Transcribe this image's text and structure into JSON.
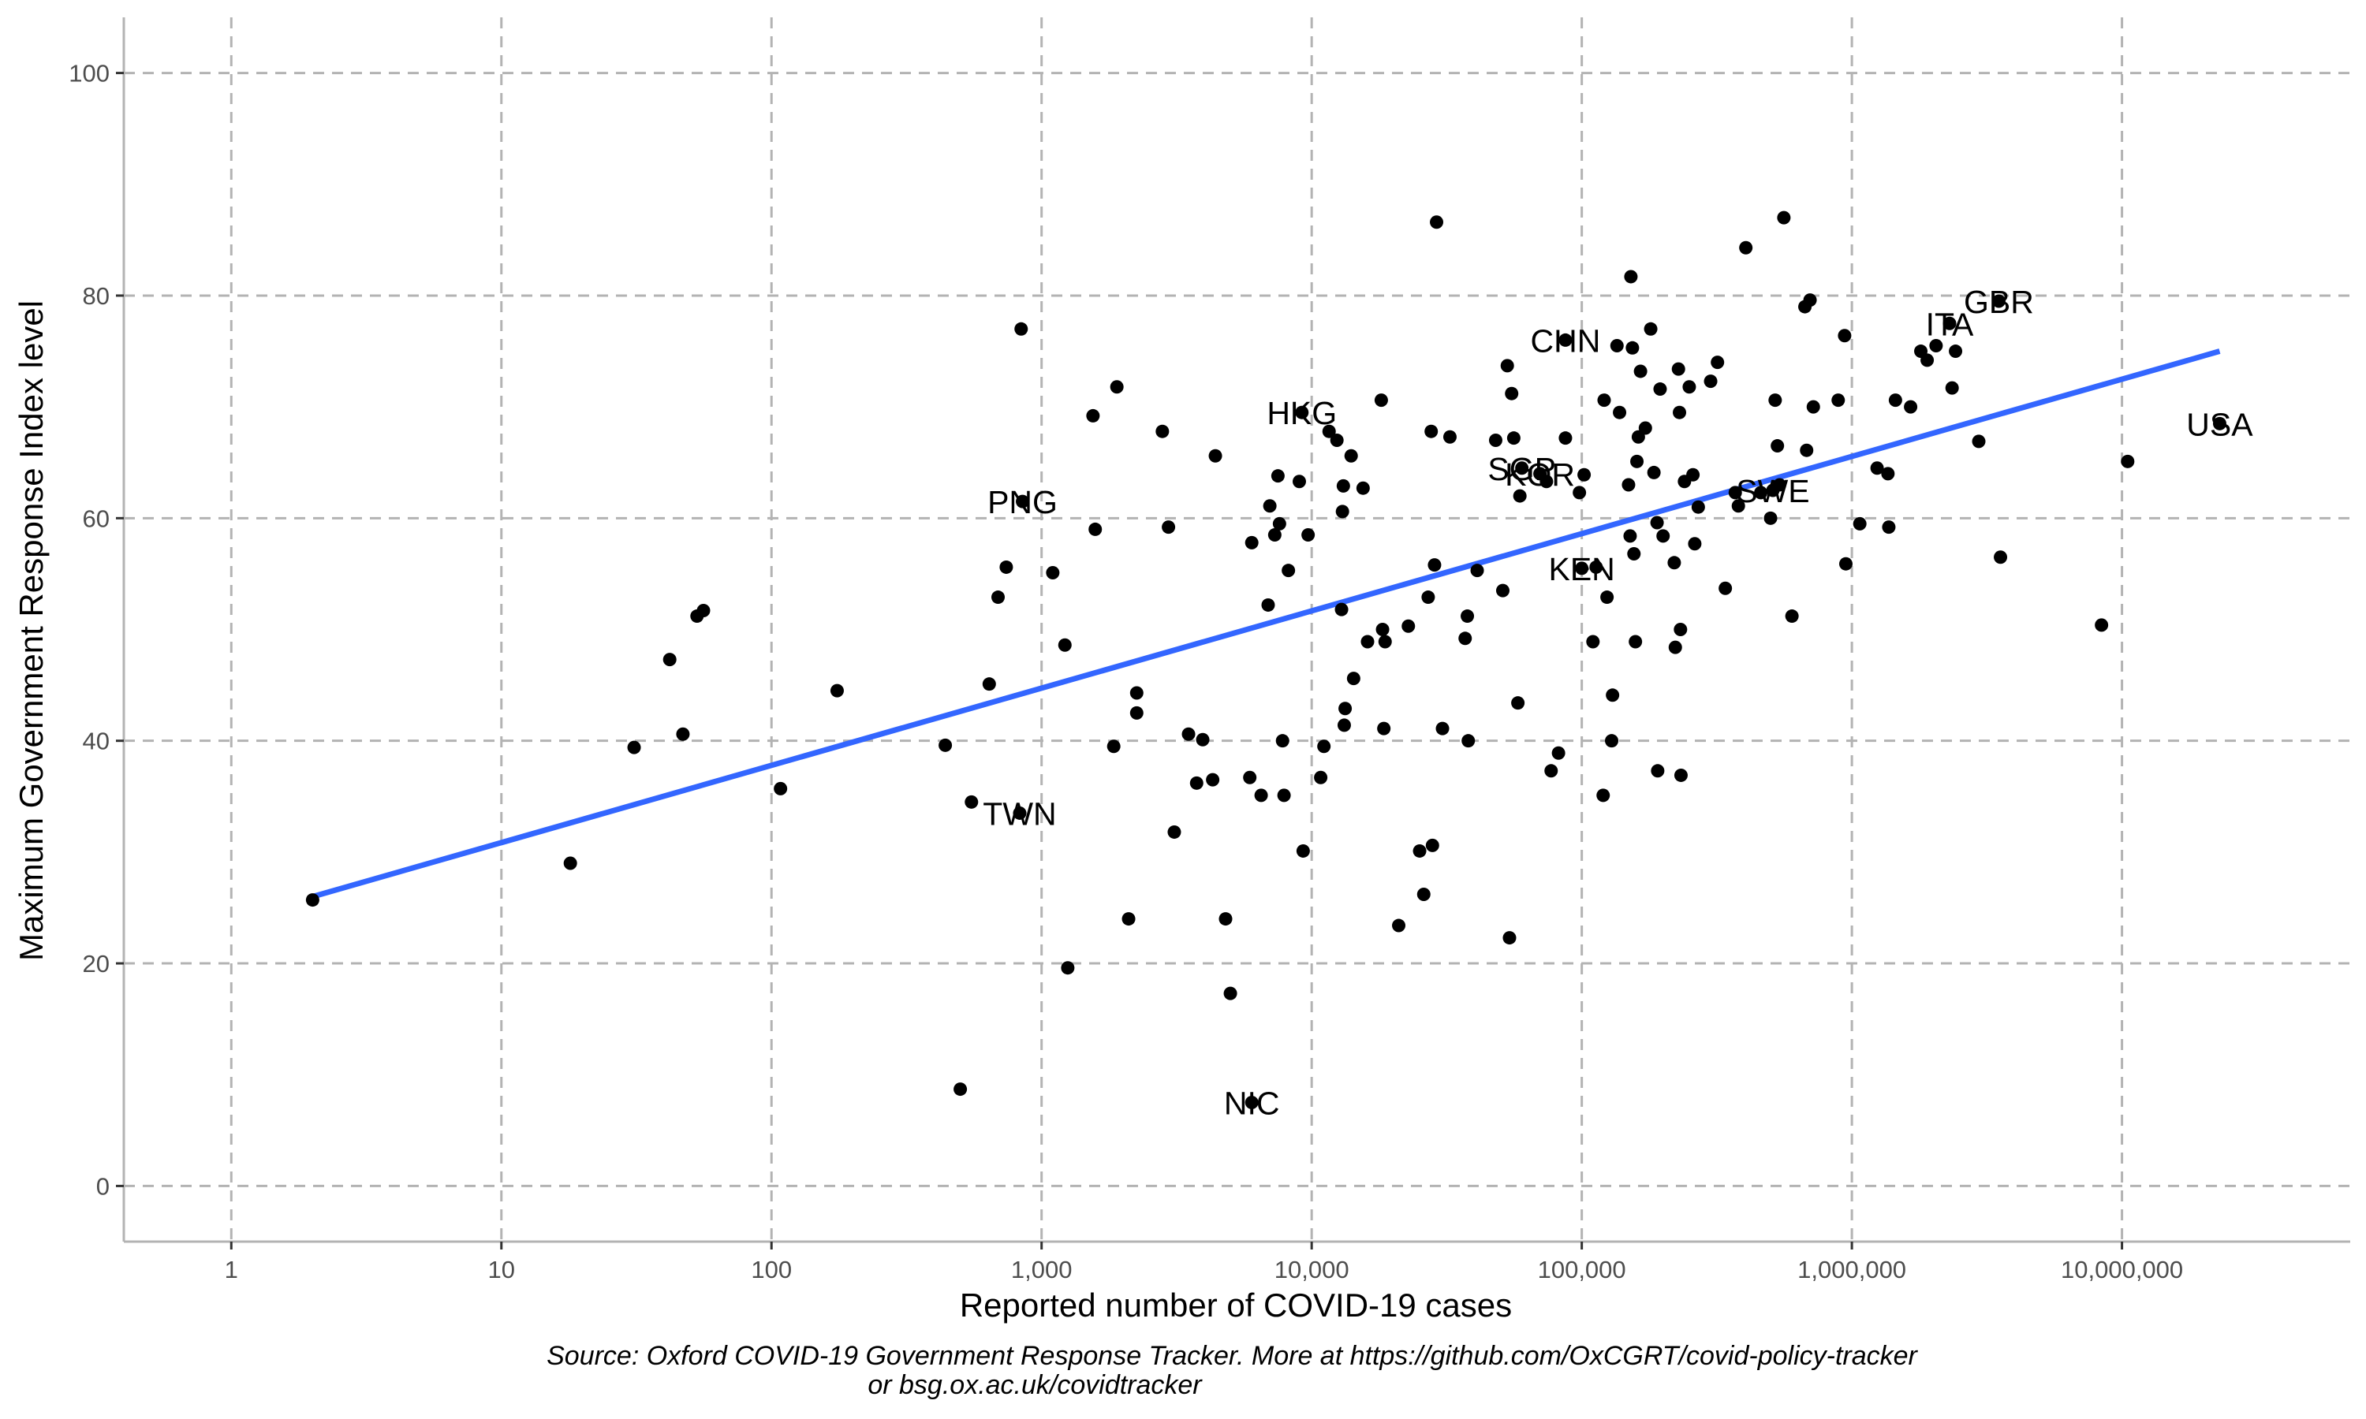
{
  "chart_data": {
    "type": "scatter",
    "xlabel": "Reported number of COVID-19 cases",
    "ylabel": "Maximum Government Response Index level",
    "x_scale": "log10",
    "xlim": [
      0.4,
      70000000
    ],
    "ylim": [
      -5,
      105
    ],
    "x_ticks": [
      {
        "value": 1,
        "label": "1"
      },
      {
        "value": 10,
        "label": "10"
      },
      {
        "value": 100,
        "label": "100"
      },
      {
        "value": 1000,
        "label": "1,000"
      },
      {
        "value": 10000,
        "label": "10,000"
      },
      {
        "value": 100000,
        "label": "100,000"
      },
      {
        "value": 1000000,
        "label": "1,000,000"
      },
      {
        "value": 10000000,
        "label": "10,000,000"
      }
    ],
    "y_ticks": [
      {
        "value": 0,
        "label": "0"
      },
      {
        "value": 20,
        "label": "20"
      },
      {
        "value": 40,
        "label": "40"
      },
      {
        "value": 60,
        "label": "60"
      },
      {
        "value": 80,
        "label": "80"
      },
      {
        "value": 100,
        "label": "100"
      }
    ],
    "grid": true,
    "legend": "none",
    "colors": {
      "points": "#000000",
      "trend": "#3366FF",
      "grid": "#b3b3b3",
      "axis": "#b3b3b3"
    },
    "trend_line": {
      "x": [
        2,
        23000000
      ],
      "y": [
        26,
        75
      ]
    },
    "labeled_points": [
      {
        "label": "GBR",
        "x": 3500000,
        "y": 79.5
      },
      {
        "label": "ITA",
        "x": 2300000,
        "y": 77.5
      },
      {
        "label": "CHN",
        "x": 87000,
        "y": 76
      },
      {
        "label": "USA",
        "x": 23000000,
        "y": 68.5
      },
      {
        "label": "HKG",
        "x": 9200,
        "y": 69.5
      },
      {
        "label": "SGP",
        "x": 60000,
        "y": 64.5
      },
      {
        "label": "KOR",
        "x": 70000,
        "y": 64
      },
      {
        "label": "PNG",
        "x": 850,
        "y": 61.5
      },
      {
        "label": "SWE",
        "x": 510000,
        "y": 62.5
      },
      {
        "label": "KEN",
        "x": 100000,
        "y": 55.5
      },
      {
        "label": "TWN",
        "x": 830,
        "y": 33.5
      },
      {
        "label": "NIC",
        "x": 6000,
        "y": 7.5
      }
    ],
    "points": [
      [
        2,
        25.7
      ],
      [
        18,
        29
      ],
      [
        31,
        39.4
      ],
      [
        42,
        47.3
      ],
      [
        47,
        40.6
      ],
      [
        53,
        51.2
      ],
      [
        56,
        51.7
      ],
      [
        108,
        35.7
      ],
      [
        175,
        44.5
      ],
      [
        440,
        39.6
      ],
      [
        500,
        8.7
      ],
      [
        550,
        34.5
      ],
      [
        640,
        45.1
      ],
      [
        690,
        52.9
      ],
      [
        740,
        55.6
      ],
      [
        840,
        77
      ],
      [
        1100,
        55.1
      ],
      [
        1220,
        48.6
      ],
      [
        1250,
        19.6
      ],
      [
        1550,
        69.2
      ],
      [
        1580,
        59
      ],
      [
        1850,
        39.5
      ],
      [
        1900,
        71.8
      ],
      [
        2100,
        24
      ],
      [
        2250,
        44.3
      ],
      [
        2250,
        42.5
      ],
      [
        2800,
        67.8
      ],
      [
        2950,
        59.2
      ],
      [
        3100,
        31.8
      ],
      [
        3500,
        40.6
      ],
      [
        3750,
        36.2
      ],
      [
        3950,
        40.1
      ],
      [
        4300,
        36.5
      ],
      [
        4400,
        65.6
      ],
      [
        4800,
        24
      ],
      [
        5000,
        17.3
      ],
      [
        5900,
        36.7
      ],
      [
        6000,
        57.8
      ],
      [
        6500,
        35.1
      ],
      [
        6900,
        52.2
      ],
      [
        7000,
        61.1
      ],
      [
        7300,
        58.5
      ],
      [
        7500,
        63.8
      ],
      [
        7600,
        59.5
      ],
      [
        7800,
        40
      ],
      [
        7900,
        35.1
      ],
      [
        8200,
        55.3
      ],
      [
        9000,
        63.3
      ],
      [
        9300,
        30.1
      ],
      [
        9700,
        58.5
      ],
      [
        10800,
        36.7
      ],
      [
        11100,
        39.5
      ],
      [
        11600,
        67.8
      ],
      [
        12400,
        67
      ],
      [
        12900,
        51.8
      ],
      [
        13000,
        60.6
      ],
      [
        13100,
        62.9
      ],
      [
        13200,
        41.4
      ],
      [
        13300,
        42.9
      ],
      [
        14000,
        65.6
      ],
      [
        14300,
        45.6
      ],
      [
        15500,
        62.7
      ],
      [
        16100,
        48.9
      ],
      [
        18100,
        70.6
      ],
      [
        18300,
        50
      ],
      [
        18500,
        41.1
      ],
      [
        18700,
        48.9
      ],
      [
        21000,
        23.4
      ],
      [
        22800,
        50.3
      ],
      [
        25100,
        30.1
      ],
      [
        26000,
        26.2
      ],
      [
        27000,
        52.9
      ],
      [
        27700,
        67.8
      ],
      [
        28000,
        30.6
      ],
      [
        28500,
        55.8
      ],
      [
        29000,
        86.6
      ],
      [
        30500,
        41.1
      ],
      [
        32500,
        67.3
      ],
      [
        37000,
        49.2
      ],
      [
        37700,
        51.2
      ],
      [
        38000,
        40
      ],
      [
        41000,
        55.3
      ],
      [
        48000,
        67
      ],
      [
        51000,
        53.5
      ],
      [
        53000,
        73.7
      ],
      [
        54000,
        22.3
      ],
      [
        55000,
        71.2
      ],
      [
        56000,
        67.2
      ],
      [
        58000,
        43.4
      ],
      [
        59000,
        62
      ],
      [
        74000,
        63.3
      ],
      [
        77000,
        37.3
      ],
      [
        82000,
        38.9
      ],
      [
        87000,
        67.2
      ],
      [
        98000,
        62.3
      ],
      [
        102000,
        63.9
      ],
      [
        110000,
        48.9
      ],
      [
        113000,
        55.6
      ],
      [
        120000,
        35.1
      ],
      [
        121000,
        70.6
      ],
      [
        124000,
        52.9
      ],
      [
        129000,
        40
      ],
      [
        130000,
        44.1
      ],
      [
        135000,
        75.5
      ],
      [
        138000,
        69.5
      ],
      [
        149000,
        63
      ],
      [
        151000,
        58.4
      ],
      [
        152000,
        81.7
      ],
      [
        154000,
        75.3
      ],
      [
        156000,
        56.8
      ],
      [
        158000,
        48.9
      ],
      [
        160000,
        65.1
      ],
      [
        162000,
        67.3
      ],
      [
        165000,
        73.2
      ],
      [
        172000,
        68.1
      ],
      [
        180000,
        77
      ],
      [
        185000,
        64.1
      ],
      [
        190000,
        59.6
      ],
      [
        191000,
        37.3
      ],
      [
        195000,
        71.6
      ],
      [
        200000,
        58.4
      ],
      [
        220000,
        56
      ],
      [
        222000,
        48.4
      ],
      [
        228000,
        73.4
      ],
      [
        230000,
        69.5
      ],
      [
        232000,
        50
      ],
      [
        233000,
        36.9
      ],
      [
        240000,
        63.3
      ],
      [
        250000,
        71.8
      ],
      [
        258000,
        63.9
      ],
      [
        262000,
        57.7
      ],
      [
        270000,
        61
      ],
      [
        300000,
        72.3
      ],
      [
        318000,
        74
      ],
      [
        340000,
        53.7
      ],
      [
        370000,
        62.3
      ],
      [
        380000,
        61.1
      ],
      [
        405000,
        84.3
      ],
      [
        460000,
        62.3
      ],
      [
        500000,
        60
      ],
      [
        520000,
        70.6
      ],
      [
        530000,
        66.5
      ],
      [
        540000,
        63
      ],
      [
        560000,
        87
      ],
      [
        600000,
        51.2
      ],
      [
        670000,
        79
      ],
      [
        680000,
        66.1
      ],
      [
        700000,
        79.6
      ],
      [
        720000,
        70
      ],
      [
        890000,
        70.6
      ],
      [
        940000,
        76.4
      ],
      [
        950000,
        55.9
      ],
      [
        1070000,
        59.5
      ],
      [
        1240000,
        64.5
      ],
      [
        1360000,
        64
      ],
      [
        1370000,
        59.2
      ],
      [
        1450000,
        70.6
      ],
      [
        1650000,
        70
      ],
      [
        1800000,
        75
      ],
      [
        1900000,
        74.2
      ],
      [
        2050000,
        75.5
      ],
      [
        2350000,
        71.7
      ],
      [
        2420000,
        75
      ],
      [
        2950000,
        66.9
      ],
      [
        3550000,
        56.5
      ],
      [
        8400000,
        50.4
      ],
      [
        10500000,
        65.1
      ]
    ]
  },
  "caption": {
    "line1": "Source: Oxford COVID-19 Government Response Tracker. More at https://github.com/OxCGRT/covid-policy-tracker",
    "line2": "or bsg.ox.ac.uk/covidtracker"
  }
}
